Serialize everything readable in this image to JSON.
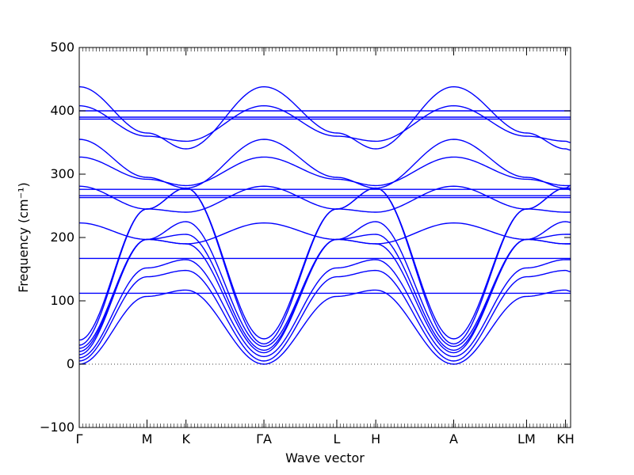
{
  "chart_data": {
    "type": "line",
    "title": "",
    "xlabel": "Wave vector",
    "ylabel": "Frequency",
    "ylabel_unit": "(cm⁻¹)",
    "ylim": [
      -100,
      500
    ],
    "yticks": [
      -100,
      0,
      100,
      200,
      300,
      400,
      500
    ],
    "x_range": [
      0,
      14.5
    ],
    "xticks": [
      {
        "x": 0,
        "label": "Γ"
      },
      {
        "x": 2.0,
        "label": "M"
      },
      {
        "x": 3.15,
        "label": "K"
      },
      {
        "x": 5.45,
        "label": "ΓA"
      },
      {
        "x": 7.6,
        "label": "L"
      },
      {
        "x": 8.75,
        "label": "H"
      },
      {
        "x": 11.05,
        "label": "A"
      },
      {
        "x": 13.2,
        "label": "LM"
      },
      {
        "x": 14.35,
        "label": "KH"
      }
    ],
    "zero_line": true,
    "grid": false,
    "line_color": "#0000ff",
    "branch_x": [
      0,
      2.0,
      3.15,
      5.45,
      7.6,
      8.75,
      11.05,
      13.2,
      14.35,
      14.5
    ],
    "series": [
      {
        "values": [
          0,
          107,
          117,
          0,
          107,
          117,
          0,
          107,
          117,
          115
        ]
      },
      {
        "values": [
          5,
          138,
          148,
          5,
          138,
          148,
          5,
          138,
          148,
          146
        ]
      },
      {
        "values": [
          10,
          152,
          165,
          12,
          152,
          165,
          12,
          152,
          165,
          165
        ]
      },
      {
        "values": [
          15,
          197,
          190,
          18,
          197,
          190,
          18,
          197,
          190,
          190
        ]
      },
      {
        "values": [
          20,
          197,
          205,
          22,
          197,
          205,
          22,
          197,
          205,
          205
        ]
      },
      {
        "values": [
          25,
          197,
          225,
          28,
          197,
          225,
          28,
          197,
          225,
          224
        ]
      },
      {
        "values": [
          30,
          245,
          278,
          32,
          245,
          278,
          32,
          245,
          278,
          275
        ]
      },
      {
        "values": [
          38,
          245,
          278,
          40,
          245,
          278,
          40,
          245,
          278,
          282
        ]
      },
      {
        "values": [
          112,
          112,
          112,
          112,
          112,
          112,
          112,
          112,
          112,
          112
        ]
      },
      {
        "values": [
          167,
          167,
          167,
          167,
          167,
          167,
          167,
          167,
          167,
          167
        ]
      },
      {
        "values": [
          223,
          197,
          190,
          223,
          197,
          190,
          223,
          197,
          190,
          190
        ]
      },
      {
        "values": [
          263,
          263,
          263,
          263,
          263,
          263,
          263,
          263,
          263,
          263
        ]
      },
      {
        "values": [
          266,
          266,
          266,
          266,
          266,
          266,
          266,
          266,
          266,
          266
        ]
      },
      {
        "values": [
          276,
          276,
          276,
          276,
          276,
          276,
          276,
          276,
          276,
          276
        ]
      },
      {
        "values": [
          281,
          245,
          240,
          281,
          245,
          240,
          281,
          245,
          240,
          240
        ]
      },
      {
        "values": [
          327,
          292,
          282,
          327,
          292,
          282,
          327,
          292,
          282,
          282
        ]
      },
      {
        "values": [
          355,
          295,
          278,
          355,
          295,
          278,
          355,
          295,
          278,
          278
        ]
      },
      {
        "values": [
          387,
          387,
          387,
          387,
          387,
          387,
          387,
          387,
          387,
          387
        ]
      },
      {
        "values": [
          390,
          390,
          390,
          390,
          390,
          390,
          390,
          390,
          390,
          390
        ]
      },
      {
        "values": [
          400,
          400,
          400,
          400,
          400,
          400,
          400,
          400,
          400,
          400
        ]
      },
      {
        "values": [
          408,
          360,
          352,
          408,
          360,
          352,
          408,
          360,
          352,
          350
        ]
      },
      {
        "values": [
          438,
          365,
          340,
          438,
          365,
          340,
          438,
          365,
          340,
          338
        ]
      }
    ]
  }
}
